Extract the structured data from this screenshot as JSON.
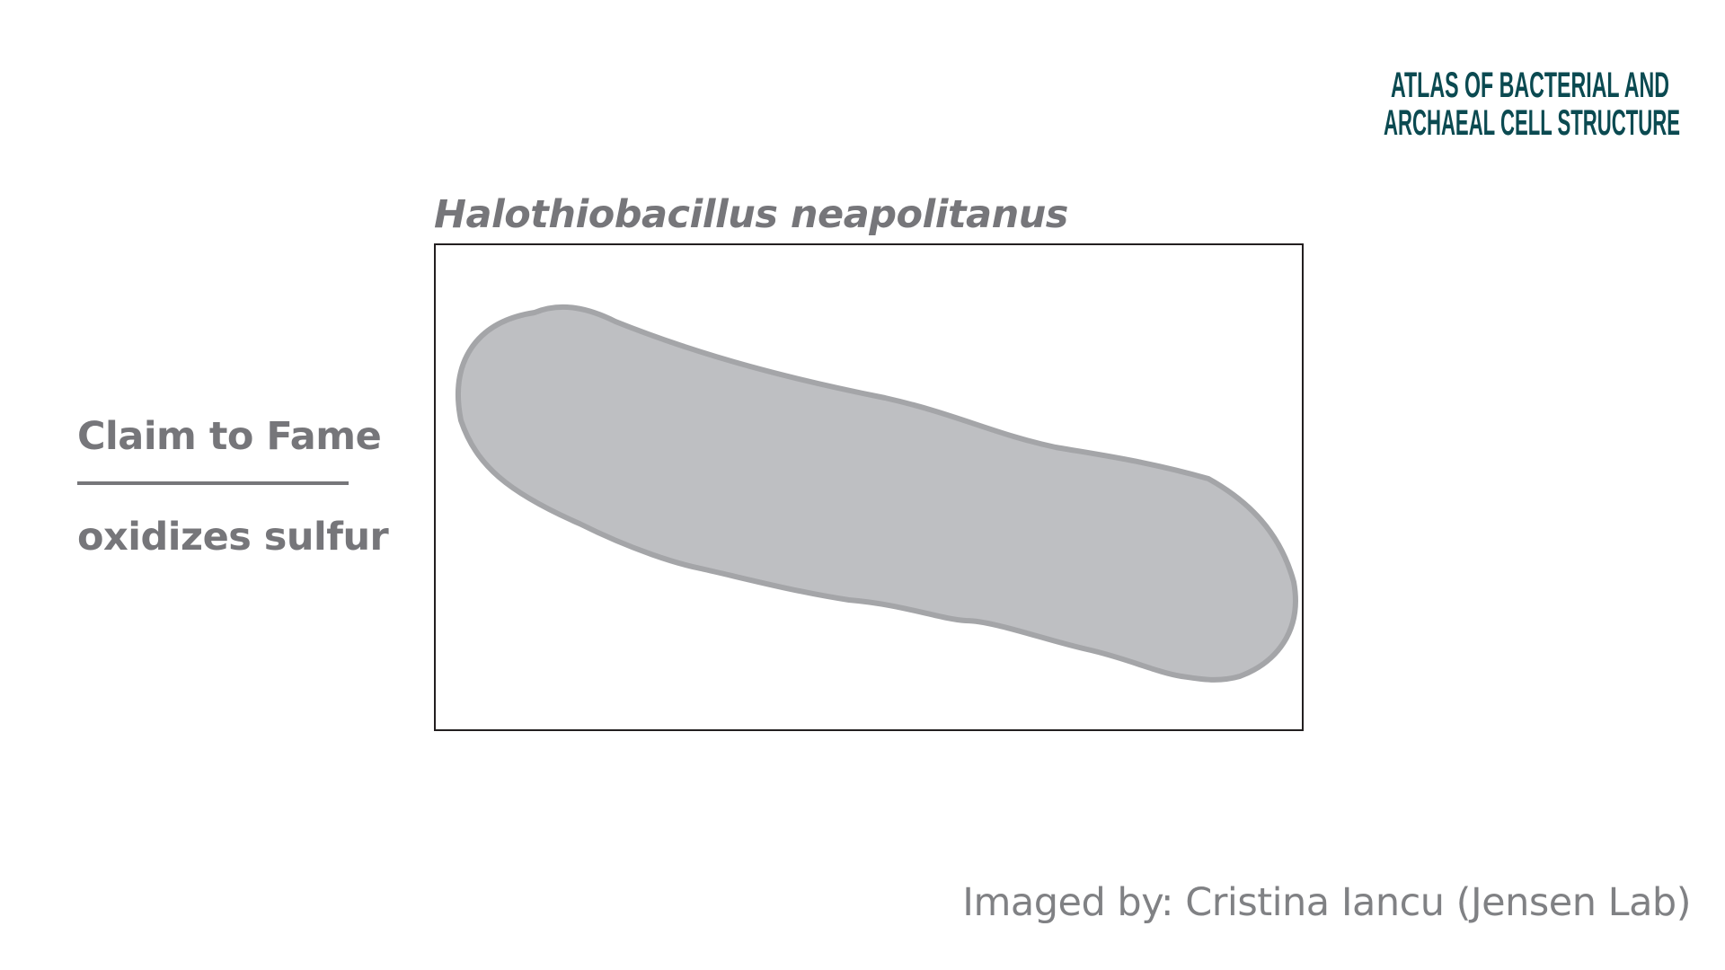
{
  "logo": {
    "line1": "ATLAS OF BACTERIAL AND",
    "line2": "ARCHAEAL CELL STRUCTURE",
    "color": "#0b4a51"
  },
  "title": "Halothiobacillus neapolitanus",
  "claim": {
    "heading": "Claim to Fame",
    "value": "oxidizes sulfur"
  },
  "credit": "Imaged by: Cristina Iancu (Jensen Lab)",
  "colors": {
    "text": "#76767a",
    "cell_fill": "#bebfc2",
    "cell_outline": "#a4a5a8",
    "frame": "#231f20"
  }
}
